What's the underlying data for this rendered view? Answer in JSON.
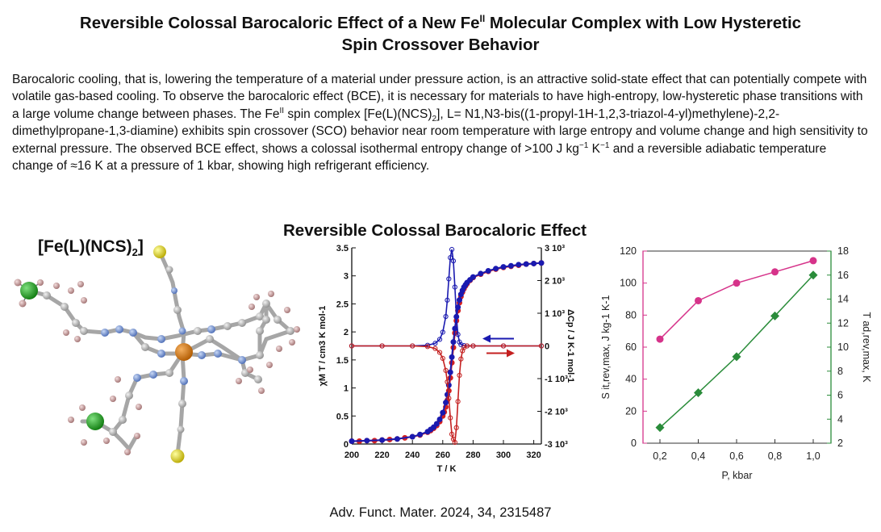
{
  "paper": {
    "title_line1": "Reversible Colossal Barocaloric Effect of a New Fe",
    "title_sup": "II",
    "title_line1b": " Molecular Complex with Low Hysteretic",
    "title_line2": "Spin Crossover Behavior",
    "abstract": {
      "p1": "Barocaloric cooling, that is, lowering the temperature of a material under pressure action, is an attractive solid-state effect that can potentially compete with volatile gas-based cooling. To observe the barocaloric effect (BCE), it is necessary for materials to have high-entropy, low-hysteretic phase transitions with a large volume change between phases. The Fe",
      "p1_sup": "II",
      "p2": " spin complex [Fe(L)(NCS)",
      "p2_sub": "2",
      "p3": "], L= N1,N3-bis((1-propyl-1H-1,2,3-triazol-4-yl)methylene)-2,2-dimethylpropane-1,3-diamine) exhibits spin crossover (SCO) behavior near room temperature with large entropy and volume change and high sensitivity to external  pressure. The observed BCE effect, shows a colossal isothermal entropy change of >100 J kg",
      "p3_sup1": "−1",
      "p4": " K",
      "p4_sup": "−1",
      "p5": " and a reversible adiabatic temperature change of ≈16 K at a pressure of 1 kbar, showing high refrigerant efficiency."
    },
    "graphical_abstract_title": "Reversible Colossal Barocaloric Effect",
    "molecule_label_main": "[Fe(L)(NCS)",
    "molecule_label_sub": "2",
    "molecule_label_end": "]",
    "citation": "Adv. Funct. Mater. 2024, 34, 2315487"
  },
  "chart_data": [
    {
      "type": "line",
      "xlabel": "T / K",
      "ylabel": "χM T / cm3 K mol-1",
      "y2label": "ΔCp / J K-1 mol-1",
      "xlim": [
        200,
        325
      ],
      "ylim": [
        0,
        3.5
      ],
      "y2lim": [
        -3000,
        3000
      ],
      "x_ticks": [
        "200",
        "220",
        "240",
        "260",
        "280",
        "300",
        "320"
      ],
      "y_ticks": [
        "0",
        "0.5",
        "1",
        "1.5",
        "2",
        "2.5",
        "3",
        "3.5"
      ],
      "y2_ticks": [
        "-3 10³",
        "-2 10³",
        "-1 10³",
        "0",
        "1 10³",
        "2 10³",
        "3 10³"
      ],
      "colors": {
        "chiT_heating": "#d42020",
        "chiT_cooling": "#1a1ab0",
        "cp_cooling": "#1a1ab0",
        "cp_heating": "#c42020"
      },
      "series": [
        {
          "axis": "left",
          "x": [
            200,
            205,
            210,
            215,
            220,
            225,
            230,
            235,
            240,
            245,
            250,
            252,
            254,
            256,
            258,
            260,
            261,
            262,
            263,
            264,
            265,
            266,
            267,
            268,
            269,
            270,
            271,
            272,
            273,
            274,
            275,
            276,
            278,
            280,
            285,
            290,
            295,
            300,
            305,
            310,
            315,
            320,
            325
          ],
          "values": [
            0.05,
            0.05,
            0.06,
            0.06,
            0.07,
            0.08,
            0.09,
            0.11,
            0.13,
            0.16,
            0.21,
            0.24,
            0.28,
            0.33,
            0.4,
            0.5,
            0.57,
            0.66,
            0.78,
            0.95,
            1.18,
            1.45,
            1.72,
            1.98,
            2.2,
            2.38,
            2.52,
            2.63,
            2.71,
            2.77,
            2.82,
            2.86,
            2.92,
            2.97,
            3.03,
            3.08,
            3.12,
            3.15,
            3.17,
            3.19,
            3.21,
            3.22,
            3.23
          ]
        },
        {
          "axis": "left",
          "x": [
            200,
            210,
            220,
            230,
            240,
            245,
            250,
            252,
            254,
            256,
            258,
            260,
            262,
            263,
            264,
            265,
            266,
            267,
            268,
            269,
            270,
            271,
            272,
            273,
            274,
            275,
            276,
            278,
            280,
            285,
            290,
            295,
            300,
            305,
            310,
            315,
            320,
            325
          ],
          "values": [
            0.05,
            0.06,
            0.07,
            0.09,
            0.13,
            0.17,
            0.22,
            0.26,
            0.3,
            0.36,
            0.44,
            0.56,
            0.74,
            0.88,
            1.05,
            1.28,
            1.55,
            1.82,
            2.06,
            2.27,
            2.44,
            2.57,
            2.67,
            2.74,
            2.8,
            2.84,
            2.88,
            2.93,
            2.98,
            3.04,
            3.09,
            3.13,
            3.16,
            3.18,
            3.2,
            3.21,
            3.22,
            3.23
          ]
        },
        {
          "axis": "right",
          "x": [
            200,
            220,
            240,
            250,
            255,
            258,
            260,
            262,
            263,
            264,
            265,
            266,
            267,
            268,
            269,
            270,
            271,
            272,
            274,
            276,
            280,
            300,
            325
          ],
          "values": [
            0,
            0,
            0,
            20,
            80,
            200,
            420,
            900,
            1400,
            2050,
            2700,
            2950,
            2600,
            1800,
            900,
            350,
            120,
            40,
            10,
            0,
            0,
            0,
            0
          ]
        },
        {
          "axis": "right",
          "x": [
            200,
            220,
            240,
            250,
            255,
            258,
            260,
            262,
            263,
            264,
            265,
            266,
            267,
            268,
            269,
            270,
            271,
            272,
            273,
            274,
            276,
            280,
            300,
            325
          ],
          "values": [
            0,
            0,
            0,
            -20,
            -80,
            -200,
            -380,
            -750,
            -1100,
            -1600,
            -2200,
            -2700,
            -2850,
            -2950,
            -2500,
            -1700,
            -900,
            -400,
            -150,
            -50,
            0,
            0,
            0,
            0
          ]
        }
      ]
    },
    {
      "type": "line",
      "xlabel": "P, kbar",
      "ylabel": "S it,rev,max, J kg-1 K-1",
      "y2label": "T ad,rev,max, K",
      "categories": [
        "0,2",
        "0,4",
        "0,6",
        "0,8",
        "1,0"
      ],
      "ylim": [
        0,
        120
      ],
      "y2lim": [
        2,
        18
      ],
      "y_ticks": [
        "0",
        "20",
        "40",
        "60",
        "80",
        "100",
        "120"
      ],
      "y2_ticks": [
        "2",
        "4",
        "6",
        "8",
        "10",
        "12",
        "14",
        "16",
        "18"
      ],
      "colors": {
        "entropy": "#d6338a",
        "temperature": "#2a8c3a"
      },
      "series": [
        {
          "axis": "left",
          "values": [
            65,
            89,
            100,
            107,
            114
          ]
        },
        {
          "axis": "right",
          "values": [
            3.3,
            6.2,
            9.2,
            12.6,
            16.0
          ]
        }
      ]
    }
  ]
}
